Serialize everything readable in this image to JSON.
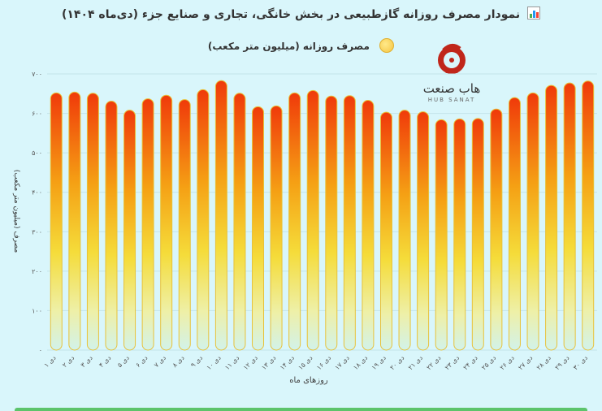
{
  "chart_data": {
    "type": "bar",
    "title": "نمودار مصرف روزانه گازطبیعی در بخش خانگی، تجاری و صنایع جزء (دی‌ماه ۱۴۰۴)",
    "legend": "مصرف روزانه (میلیون متر مکعب)",
    "legend_position": "top-center",
    "ylabel": "مصرف (میلیون متر مکعب)",
    "xlabel": "روزهای ماه",
    "ylim": [
      0,
      700
    ],
    "yticks": [
      "۰",
      "۱۰۰",
      "۲۰۰",
      "۳۰۰",
      "۴۰۰",
      "۵۰۰",
      "۶۰۰",
      "۷۰۰"
    ],
    "grid": true,
    "categories": [
      "۱ دی",
      "۲ دی",
      "۳ دی",
      "۴ دی",
      "۵ دی",
      "۶ دی",
      "۷ دی",
      "۸ دی",
      "۹ دی",
      "۱۰ دی",
      "۱۱ دی",
      "۱۲ دی",
      "۱۳ دی",
      "۱۴ دی",
      "۱۵ دی",
      "۱۶ دی",
      "۱۷ دی",
      "۱۸ دی",
      "۱۹ دی",
      "۲۰ دی",
      "۲۱ دی",
      "۲۲ دی",
      "۲۳ دی",
      "۲۴ دی",
      "۲۵ دی",
      "۲۶ دی",
      "۲۷ دی",
      "۲۸ دی",
      "۲۹ دی",
      "۳۰ دی"
    ],
    "series": [
      {
        "name": "مصرف روزانه (میلیون متر مکعب)",
        "values": [
          652,
          654,
          651,
          631,
          608,
          637,
          646,
          635,
          660,
          683,
          651,
          617,
          619,
          652,
          658,
          644,
          645,
          633,
          603,
          608,
          604,
          584,
          586,
          587,
          611,
          640,
          652,
          671,
          677,
          682
        ]
      }
    ]
  },
  "logo": {
    "fa": "هاب صنعت",
    "en": "HUB SANAT"
  },
  "colors": {
    "bar_top": "#f04a0a",
    "bar_mid": "#f5a51a",
    "bar_low": "#f6e27a",
    "bar_base": "#d4f3ea",
    "grid": "#c3e4ea",
    "background": "#d9f6fb"
  }
}
